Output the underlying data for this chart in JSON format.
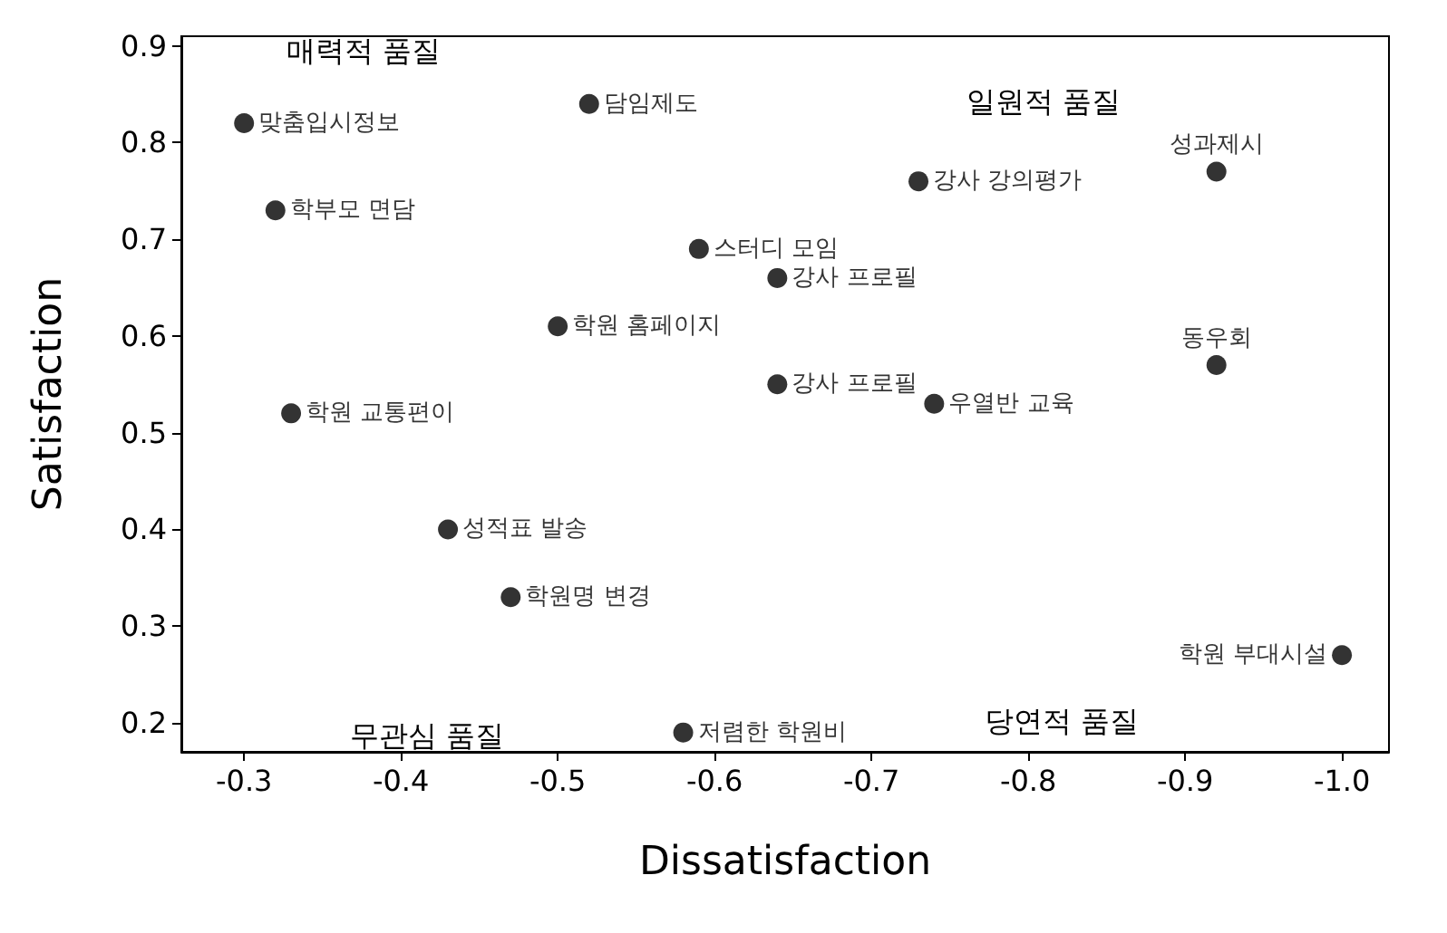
{
  "chart_data": {
    "type": "scatter",
    "xlabel": "Dissatisfaction",
    "ylabel": "Satisfaction",
    "x": [
      -0.3,
      -0.52,
      -0.32,
      -0.59,
      -0.64,
      -0.5,
      -0.64,
      -0.33,
      -0.43,
      -0.47,
      -0.58,
      -0.73,
      -0.92,
      -0.92,
      -0.74,
      -1.0
    ],
    "values": [
      0.82,
      0.84,
      0.73,
      0.69,
      0.66,
      0.61,
      0.55,
      0.52,
      0.4,
      0.33,
      0.19,
      0.76,
      0.77,
      0.57,
      0.53,
      0.27
    ],
    "color": "#000000",
    "marker": "circle",
    "grid": false,
    "xlim": [
      -0.26,
      -1.03
    ],
    "ylim": [
      0.17,
      0.91
    ],
    "xticks": [
      -0.3,
      -0.4,
      -0.5,
      -0.6,
      -0.7,
      -0.8,
      -0.9,
      {
        "value": -1,
        "label": "-1.0"
      }
    ],
    "yticks": [
      0.2,
      0.3,
      0.4,
      0.5,
      0.6,
      0.7,
      0.8,
      0.9
    ],
    "annotations": [
      {
        "text": "맞춤입시정보",
        "x": -0.3,
        "y": 0.82
      },
      {
        "text": "담임제도",
        "x": -0.52,
        "y": 0.84
      },
      {
        "text": "학부모 면담",
        "x": -0.32,
        "y": 0.73
      },
      {
        "text": "스터디 모임",
        "x": -0.59,
        "y": 0.69
      },
      {
        "text": "강사 프로필",
        "x": -0.64,
        "y": 0.66
      },
      {
        "text": "학원 홈페이지",
        "x": -0.5,
        "y": 0.61
      },
      {
        "text": "강사 프로필",
        "x": -0.64,
        "y": 0.55
      },
      {
        "text": "학원 교통편이",
        "x": -0.33,
        "y": 0.52
      },
      {
        "text": "성적표 발송",
        "x": -0.43,
        "y": 0.4
      },
      {
        "text": "학원명 변경",
        "x": -0.47,
        "y": 0.33
      },
      {
        "text": "저렴한 학원비",
        "x": -0.58,
        "y": 0.19
      },
      {
        "text": "강사 강의평가",
        "x": -0.73,
        "y": 0.76
      },
      {
        "text": "성과제시",
        "x": -0.92,
        "y": 0.77
      },
      {
        "text": "동우회",
        "x": -0.92,
        "y": 0.57
      },
      {
        "text": "우열반 교육",
        "x": -0.74,
        "y": 0.53
      },
      {
        "text": "학원 부대시설",
        "x": -1.0,
        "y": 0.27
      },
      "매력적 품질",
      "일원적 품질",
      "무관심 품질",
      "당연적 품질"
    ]
  }
}
